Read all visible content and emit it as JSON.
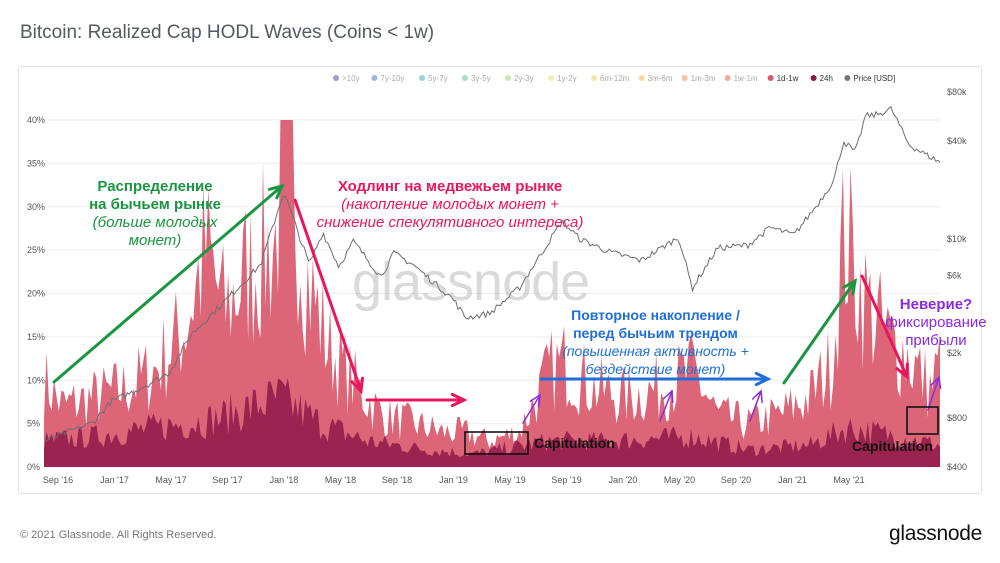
{
  "header": {
    "title": "Bitcoin: Realized Cap HODL Waves (Coins  < 1w)"
  },
  "footer": {
    "copyright": "© 2021 Glassnode. All Rights Reserved.",
    "brand": "glassnode"
  },
  "watermark": "glassnode",
  "legend": [
    {
      "label": ">10y",
      "color": "#5b4a9e",
      "active": false
    },
    {
      "label": "7y-10y",
      "color": "#4d79c7",
      "active": false
    },
    {
      "label": "5y-7y",
      "color": "#3fb0c2",
      "active": false
    },
    {
      "label": "3y-5y",
      "color": "#5cc28a",
      "active": false
    },
    {
      "label": "2y-3y",
      "color": "#a7d46b",
      "active": false
    },
    {
      "label": "1y-2y",
      "color": "#e8e36a",
      "active": false
    },
    {
      "label": "6m-12m",
      "color": "#f3d06a",
      "active": false
    },
    {
      "label": "3m-6m",
      "color": "#f2b45e",
      "active": false
    },
    {
      "label": "1m-3m",
      "color": "#ee9150",
      "active": false
    },
    {
      "label": "1w-1m",
      "color": "#e76a55",
      "active": false
    },
    {
      "label": "1d-1w",
      "color": "#d9596c",
      "active": true
    },
    {
      "label": "24h",
      "color": "#8e1848",
      "active": true
    },
    {
      "label": "Price [USD]",
      "color": "#777777",
      "active": true
    }
  ],
  "annotations": {
    "distribution": {
      "line1": "Распределение",
      "line2": "на бычьем рынке",
      "line3": "(больше молодых",
      "line4": "монет)",
      "color": "#1a9641"
    },
    "bear_hodl": {
      "line1": "Ходлинг на медвежьем рынке",
      "line2": "(накопление молодых монет +",
      "line3": "снижение спекулятивного интереса)",
      "color": "#e8175d"
    },
    "reaccum": {
      "line1": "Повторное накопление /",
      "line2": "перед бычьим трендом",
      "line3": "(повышенная активность +",
      "line4": "бездействие монет)",
      "color": "#1f6fd6"
    },
    "disbelief": {
      "line1": "Неверие?",
      "line2": "фиксирование",
      "line3": "прибыли",
      "color": "#8a2be2"
    },
    "capitulation1": "Capitulation",
    "capitulation2": "Capitulation"
  },
  "chart_data": {
    "type": "area",
    "x_ticks": [
      "Sep '16",
      "Jan '17",
      "May '17",
      "Sep '17",
      "Jan '18",
      "May '18",
      "Sep '18",
      "Jan '19",
      "May '19",
      "Sep '19",
      "Jan '20",
      "May '20",
      "Sep '20",
      "Jan '21",
      "May '21"
    ],
    "y_left_ticks": [
      "0%",
      "5%",
      "10%",
      "15%",
      "20%",
      "25%",
      "30%",
      "35%",
      "40%"
    ],
    "y_left_range": [
      0,
      40
    ],
    "y_right_ticks": [
      "$400",
      "$800",
      "$2k",
      "$6k",
      "$10k",
      "$40k",
      "$80k"
    ],
    "y_right_values": [
      400,
      800,
      2000,
      6000,
      10000,
      40000,
      80000
    ],
    "y_right_scale": "log",
    "x_range": [
      "2016-08-25",
      "2021-07-20"
    ],
    "series": [
      {
        "name": "1d-1w",
        "color": "#d9596c",
        "type": "area",
        "x": [
          "2016-08-25",
          "2016-10-01",
          "2016-12-01",
          "2017-02-01",
          "2017-04-01",
          "2017-06-01",
          "2017-07-15",
          "2017-08-20",
          "2017-10-01",
          "2017-12-01",
          "2017-12-18",
          "2018-02-01",
          "2018-03-15",
          "2018-05-15",
          "2018-07-01",
          "2018-09-01",
          "2018-11-01",
          "2018-12-15",
          "2019-02-01",
          "2019-04-01",
          "2019-06-01",
          "2019-07-01",
          "2019-09-01",
          "2019-11-01",
          "2020-01-01",
          "2020-03-15",
          "2020-05-01",
          "2020-07-01",
          "2020-09-01",
          "2020-11-01",
          "2020-12-15",
          "2021-01-10",
          "2021-02-15",
          "2021-04-01",
          "2021-05-15",
          "2021-07-01",
          "2021-07-20"
        ],
        "values": [
          10,
          7,
          8,
          9,
          11,
          16,
          25,
          18,
          22,
          26,
          40,
          22,
          14,
          9,
          6,
          5,
          4,
          4,
          3,
          4,
          11,
          12,
          9,
          8,
          9,
          11,
          6,
          5,
          6,
          8,
          12,
          27,
          20,
          15,
          13,
          9,
          12
        ]
      },
      {
        "name": "24h",
        "color": "#8e1848",
        "type": "area",
        "x": [
          "2016-08-25",
          "2016-12-01",
          "2017-04-01",
          "2017-08-01",
          "2017-12-10",
          "2018-03-01",
          "2018-06-01",
          "2018-10-01",
          "2019-01-01",
          "2019-06-01",
          "2019-10-01",
          "2020-03-15",
          "2020-07-01",
          "2020-11-01",
          "2021-01-15",
          "2021-05-01",
          "2021-07-20"
        ],
        "values": [
          3,
          3.5,
          4.5,
          5.5,
          8,
          5,
          3,
          2,
          1.5,
          3,
          3,
          3.5,
          2,
          2.5,
          4.5,
          3.5,
          2.5
        ]
      },
      {
        "name": "Price [USD]",
        "color": "#777777",
        "type": "line",
        "x": [
          "2016-08-25",
          "2016-12-01",
          "2017-01-05",
          "2017-03-01",
          "2017-05-01",
          "2017-06-15",
          "2017-09-01",
          "2017-11-01",
          "2017-12-17",
          "2018-02-06",
          "2018-03-05",
          "2018-04-06",
          "2018-05-05",
          "2018-06-29",
          "2018-07-25",
          "2018-09-01",
          "2018-11-20",
          "2018-12-15",
          "2019-02-01",
          "2019-04-01",
          "2019-06-26",
          "2019-08-01",
          "2019-10-01",
          "2019-12-01",
          "2020-02-14",
          "2020-03-12",
          "2020-05-01",
          "2020-07-01",
          "2020-08-15",
          "2020-10-01",
          "2020-11-15",
          "2020-12-20",
          "2021-01-08",
          "2021-02-01",
          "2021-02-21",
          "2021-03-15",
          "2021-04-14",
          "2021-05-19",
          "2021-06-22",
          "2021-07-20"
        ],
        "values": [
          575,
          750,
          1000,
          1200,
          1500,
          2600,
          4500,
          7000,
          19500,
          7000,
          11000,
          6800,
          9700,
          5900,
          8200,
          7000,
          4300,
          3300,
          3500,
          5000,
          12900,
          10000,
          8300,
          7400,
          10300,
          5000,
          8800,
          9200,
          11800,
          10600,
          16000,
          23000,
          40000,
          34000,
          57000,
          58000,
          63000,
          38000,
          33000,
          29800
        ]
      }
    ],
    "grid": true,
    "legend_position": "top-right"
  }
}
